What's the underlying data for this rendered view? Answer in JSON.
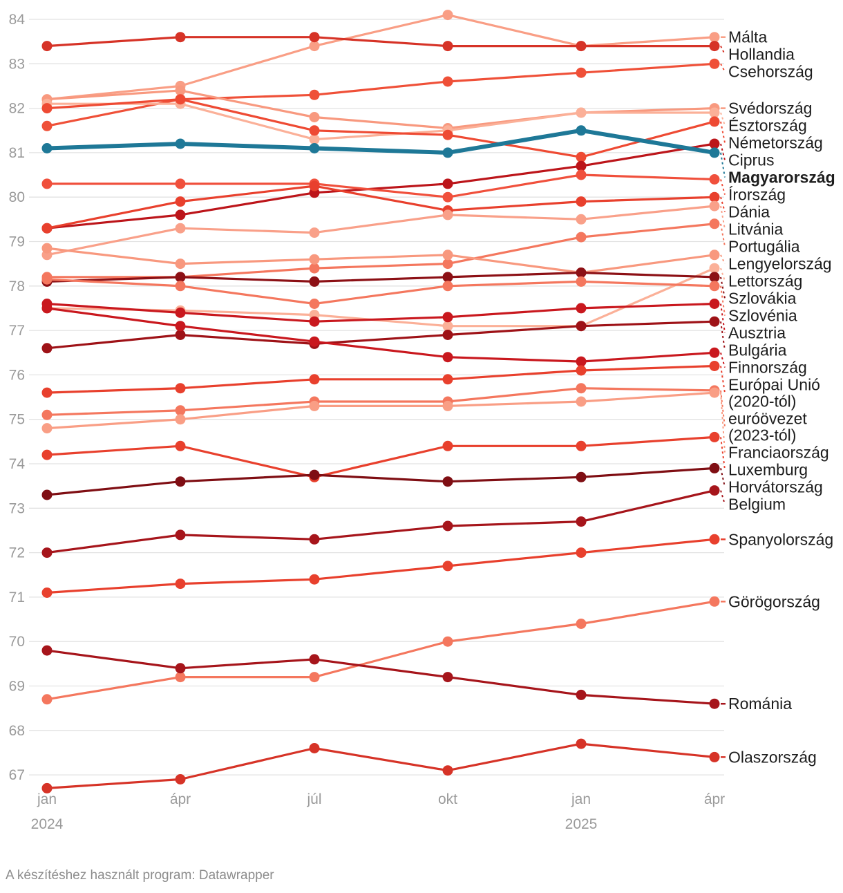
{
  "footer": {
    "credit": "A készítéshez használt program: Datawrapper"
  },
  "colors": {
    "background": "#ffffff",
    "grid": "#e2e2e2",
    "axis_text": "#9a9a9a",
    "label_text": "#1d1d1d",
    "emphasis": "#1E7897"
  },
  "chart_data": {
    "type": "line",
    "title": "",
    "xlabel": "",
    "ylabel": "",
    "ylim": [
      67,
      84
    ],
    "y_step": 1,
    "grid": true,
    "legend_position": "right-edge-labels",
    "categories": [
      "2024-jan",
      "2024-ápr",
      "2024-júl",
      "2024-okt",
      "2025-jan",
      "2025-ápr"
    ],
    "x_tick_labels": [
      [
        "jan",
        "2024"
      ],
      [
        "ápr"
      ],
      [
        "júl"
      ],
      [
        "okt"
      ],
      [
        "jan",
        "2025"
      ],
      [
        "ápr"
      ]
    ],
    "emphasized_series": "Magyarország",
    "series": [
      {
        "name": "Málta",
        "color": "#F99E85",
        "values": [
          82.2,
          82.5,
          83.4,
          84.1,
          83.4,
          83.6
        ]
      },
      {
        "name": "Hollandia",
        "color": "#D63327",
        "values": [
          83.4,
          83.6,
          83.6,
          83.4,
          83.4,
          83.4
        ]
      },
      {
        "name": "Csehország",
        "color": "#EF5038",
        "values": [
          81.6,
          82.2,
          82.3,
          82.6,
          82.8,
          83.0
        ]
      },
      {
        "name": "Svédország",
        "color": "#F8997F",
        "values": [
          82.2,
          82.4,
          81.8,
          81.55,
          81.9,
          82.0
        ]
      },
      {
        "name": "Észtország",
        "color": "#FBB098",
        "values": [
          82.1,
          82.1,
          81.3,
          81.5,
          81.9,
          81.9
        ]
      },
      {
        "name": "Németország",
        "color": "#EE4A33",
        "values": [
          82.0,
          82.2,
          81.5,
          81.4,
          80.9,
          81.7
        ]
      },
      {
        "name": "Ciprus",
        "color": "#BC151A",
        "values": [
          79.3,
          79.6,
          80.1,
          80.3,
          80.7,
          81.2
        ]
      },
      {
        "name": "Magyarország",
        "color": "#1E7897",
        "values": [
          81.1,
          81.2,
          81.1,
          81.0,
          81.5,
          81.0
        ],
        "bold": true
      },
      {
        "name": "Írország",
        "color": "#F0503C",
        "values": [
          80.3,
          80.3,
          80.3,
          80.0,
          80.5,
          80.4
        ]
      },
      {
        "name": "Dánia",
        "color": "#E8402D",
        "values": [
          79.3,
          79.9,
          80.25,
          79.7,
          79.9,
          80.0
        ]
      },
      {
        "name": "Litvánia",
        "color": "#F9A089",
        "values": [
          78.7,
          79.3,
          79.2,
          79.6,
          79.5,
          79.8
        ]
      },
      {
        "name": "Portugália",
        "color": "#F4775E",
        "values": [
          78.2,
          78.2,
          78.4,
          78.5,
          79.1,
          79.4
        ]
      },
      {
        "name": "Lengyelország",
        "color": "#F8987E",
        "values": [
          78.85,
          78.5,
          78.6,
          78.7,
          78.3,
          78.7
        ]
      },
      {
        "name": "Lettország",
        "color": "#FBB098",
        "values": [
          77.5,
          77.45,
          77.35,
          77.1,
          77.1,
          78.4
        ]
      },
      {
        "name": "Szlovákia",
        "color": "#8C1015",
        "values": [
          78.1,
          78.2,
          78.1,
          78.2,
          78.3,
          78.2
        ]
      },
      {
        "name": "Szlovénia",
        "color": "#F4775E",
        "values": [
          78.15,
          78.0,
          77.6,
          78.0,
          78.1,
          78.0
        ]
      },
      {
        "name": "Ausztria",
        "color": "#C9181E",
        "values": [
          77.6,
          77.4,
          77.2,
          77.3,
          77.5,
          77.6
        ]
      },
      {
        "name": "Bulgária",
        "color": "#9E1217",
        "values": [
          76.6,
          76.9,
          76.7,
          76.9,
          77.1,
          77.2
        ]
      },
      {
        "name": "Finnország",
        "color": "#C9181E",
        "values": [
          77.5,
          77.1,
          76.75,
          76.4,
          76.3,
          76.5
        ]
      },
      {
        "name": "Európai Unió (2020-tól)",
        "label_lines": [
          "Európai Unió",
          "(2020-tól)"
        ],
        "color": "#E8402D",
        "values": [
          75.6,
          75.7,
          75.9,
          75.9,
          76.1,
          76.2
        ]
      },
      {
        "name": "euróövezet (2023-tól)",
        "label_lines": [
          "euróövezet",
          "(2023-tól)"
        ],
        "color": "#F4775E",
        "values": [
          75.1,
          75.2,
          75.4,
          75.4,
          75.7,
          75.65
        ]
      },
      {
        "name": "Franciaország",
        "color": "#F99E85",
        "values": [
          74.8,
          75.0,
          75.3,
          75.3,
          75.4,
          75.6
        ]
      },
      {
        "name": "Luxemburg",
        "color": "#E8402D",
        "values": [
          74.2,
          74.4,
          73.7,
          74.4,
          74.4,
          74.6
        ]
      },
      {
        "name": "Horvátország",
        "color": "#7F0E13",
        "values": [
          73.3,
          73.6,
          73.75,
          73.6,
          73.7,
          73.9
        ]
      },
      {
        "name": "Belgium",
        "color": "#A6151B",
        "values": [
          72.0,
          72.4,
          72.3,
          72.6,
          72.7,
          73.4
        ]
      },
      {
        "name": "Spanyolország",
        "color": "#E8402D",
        "values": [
          71.1,
          71.3,
          71.4,
          71.7,
          72.0,
          72.3
        ]
      },
      {
        "name": "Görögország",
        "color": "#F4775E",
        "values": [
          68.7,
          69.2,
          69.2,
          70.0,
          70.4,
          70.9
        ]
      },
      {
        "name": "Románia",
        "color": "#A6151B",
        "values": [
          69.8,
          69.4,
          69.6,
          69.2,
          68.8,
          68.6
        ]
      },
      {
        "name": "Olaszország",
        "color": "#D63327",
        "values": [
          66.7,
          66.9,
          67.6,
          67.1,
          67.7,
          67.4
        ]
      }
    ]
  }
}
